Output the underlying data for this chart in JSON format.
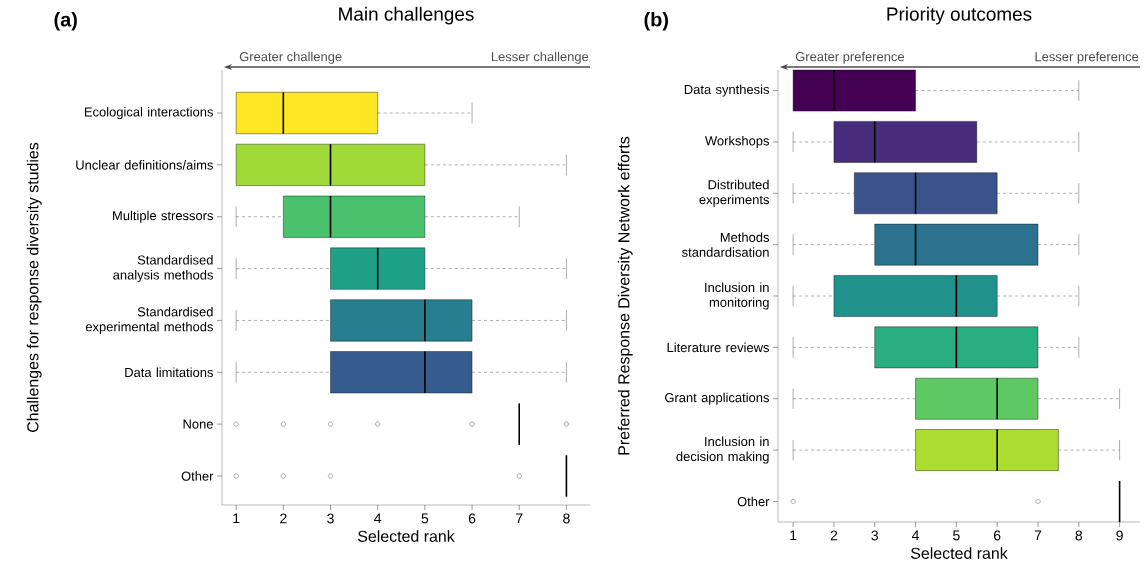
{
  "chart_data": [
    {
      "type": "box",
      "orientation": "horizontal",
      "title": "Main challenges",
      "xlabel": "Selected rank",
      "ylabel": "Challenges for response diversity studies",
      "annotations": [
        "(a)",
        "Greater challenge",
        "Lesser challenge"
      ],
      "categories": [
        "Ecological interactions",
        "Unclear definitions/aims",
        "Multiple stressors",
        "Standardised analysis methods",
        "Standardised experimental methods",
        "Data limitations",
        "None",
        "Other"
      ],
      "colors": [
        "#fde725",
        "#a0da39",
        "#4ac16d",
        "#1fa187",
        "#277f8e",
        "#365c8d",
        null,
        null
      ],
      "boxes": [
        {
          "low": 1,
          "q1": 1,
          "median": 2,
          "q3": 4,
          "high": 6
        },
        {
          "low": 1,
          "q1": 1,
          "median": 3,
          "q3": 5,
          "high": 8
        },
        {
          "low": 1,
          "q1": 2,
          "median": 3,
          "q3": 5,
          "high": 7
        },
        {
          "low": 1,
          "q1": 3,
          "median": 4,
          "q3": 5,
          "high": 8
        },
        {
          "low": 1,
          "q1": 3,
          "median": 5,
          "q3": 6,
          "high": 8
        },
        {
          "low": 1,
          "q1": 3,
          "median": 5,
          "q3": 6,
          "high": 8
        },
        {
          "low": 7,
          "q1": 7,
          "median": 7,
          "q3": 7,
          "high": 7,
          "outliers": [
            1,
            2,
            3,
            4,
            6,
            8
          ]
        },
        {
          "low": 8,
          "q1": 8,
          "median": 8,
          "q3": 8,
          "high": 8,
          "outliers": [
            1,
            2,
            3,
            7
          ]
        }
      ],
      "xlim": [
        0.7,
        8.5
      ],
      "xticks": [
        1,
        2,
        3,
        4,
        5,
        6,
        7,
        8
      ]
    },
    {
      "type": "box",
      "orientation": "horizontal",
      "title": "Priority outcomes",
      "xlabel": "Selected rank",
      "ylabel": "Preferred Response Diversity Network efforts",
      "annotations": [
        "(b)",
        "Greater preference",
        "Lesser preference"
      ],
      "categories": [
        "Data synthesis",
        "Workshops",
        "Distributed experiments",
        "Methods standardisation",
        "Inclusion in monitoring",
        "Literature reviews",
        "Grant applications",
        "Inclusion in decision making",
        "Other"
      ],
      "colors": [
        "#440154",
        "#472d7b",
        "#3b528b",
        "#2c728e",
        "#21918c",
        "#28ae80",
        "#5ec962",
        "#addc30",
        null
      ],
      "boxes": [
        {
          "low": 1,
          "q1": 1,
          "median": 2,
          "q3": 4,
          "high": 8
        },
        {
          "low": 1,
          "q1": 2,
          "median": 3,
          "q3": 5.5,
          "high": 8
        },
        {
          "low": 1,
          "q1": 2.5,
          "median": 4,
          "q3": 6,
          "high": 8
        },
        {
          "low": 1,
          "q1": 3,
          "median": 4,
          "q3": 7,
          "high": 8
        },
        {
          "low": 1,
          "q1": 2,
          "median": 5,
          "q3": 6,
          "high": 8
        },
        {
          "low": 1,
          "q1": 3,
          "median": 5,
          "q3": 7,
          "high": 8
        },
        {
          "low": 1,
          "q1": 4,
          "median": 6,
          "q3": 7,
          "high": 9
        },
        {
          "low": 1,
          "q1": 4,
          "median": 6,
          "q3": 7.5,
          "high": 9
        },
        {
          "low": 9,
          "q1": 9,
          "median": 9,
          "q3": 9,
          "high": 9,
          "outliers": [
            1,
            7
          ]
        }
      ],
      "xlim": [
        0.63,
        9.5
      ],
      "xticks": [
        1,
        2,
        3,
        4,
        5,
        6,
        7,
        8,
        9
      ]
    }
  ]
}
